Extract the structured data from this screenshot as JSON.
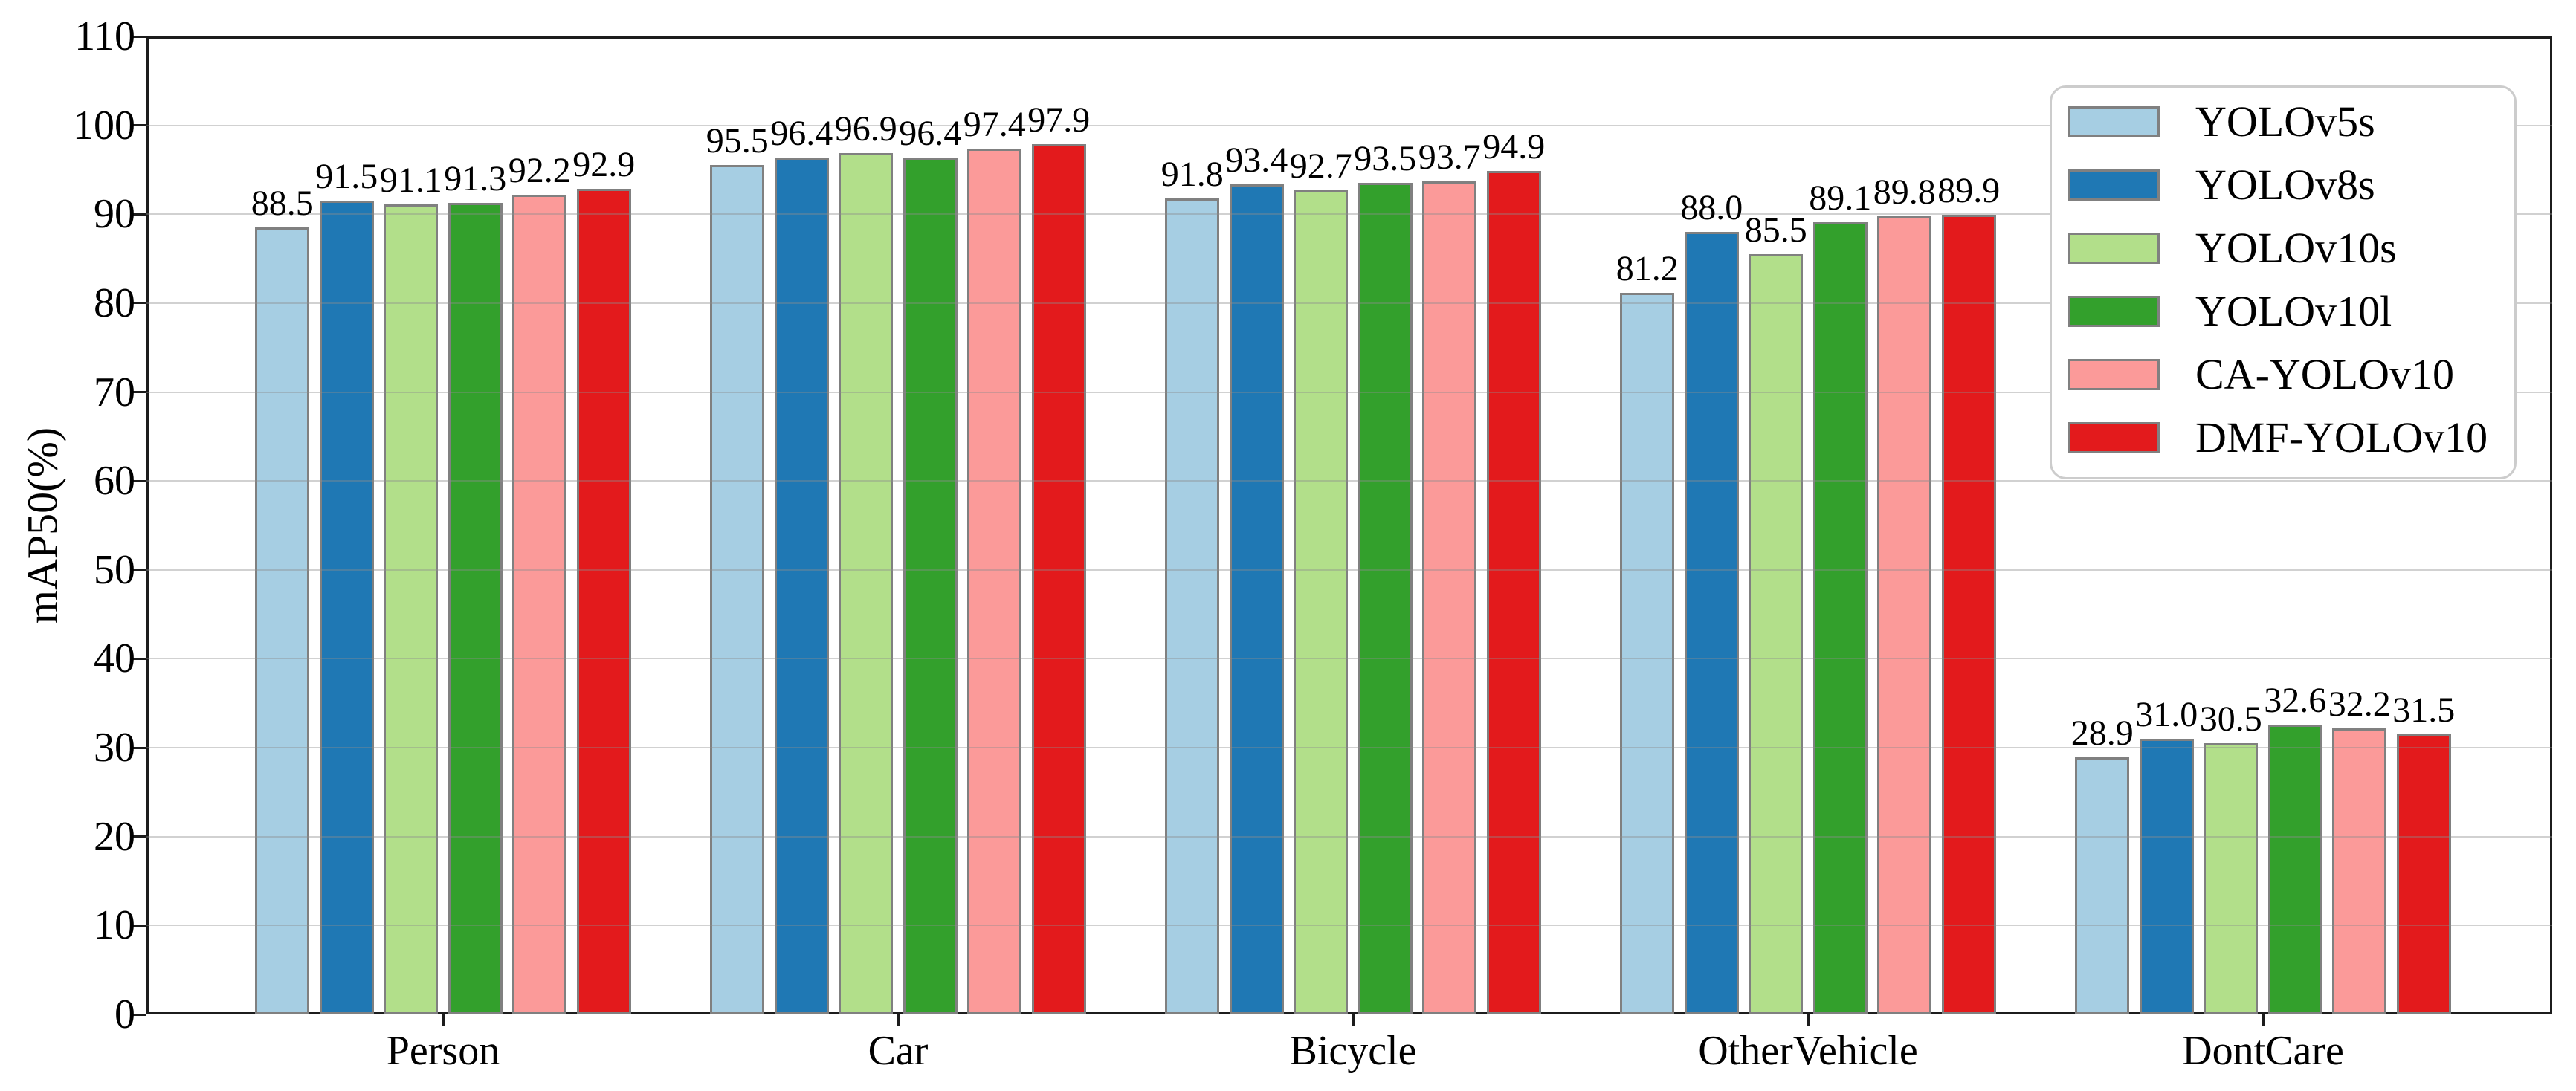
{
  "chart_data": {
    "type": "bar",
    "title": "",
    "xlabel": "",
    "ylabel": "mAP50(%)",
    "categories": [
      "Person",
      "Car",
      "Bicycle",
      "OtherVehicle",
      "DontCare"
    ],
    "series": [
      {
        "name": "YOLOv5s",
        "color": "#a6cee3",
        "values": [
          88.5,
          95.5,
          91.8,
          81.2,
          28.9
        ]
      },
      {
        "name": "YOLOv8s",
        "color": "#1f78b4",
        "values": [
          91.5,
          96.4,
          93.4,
          88.0,
          31.0
        ]
      },
      {
        "name": "YOLOv10s",
        "color": "#b2df8a",
        "values": [
          91.1,
          96.9,
          92.7,
          85.5,
          30.5
        ]
      },
      {
        "name": "YOLOv10l",
        "color": "#33a02c",
        "values": [
          91.3,
          96.4,
          93.5,
          89.1,
          32.6
        ]
      },
      {
        "name": "CA-YOLOv10",
        "color": "#fb9a99",
        "values": [
          92.2,
          97.4,
          93.7,
          89.8,
          32.2
        ]
      },
      {
        "name": "DMF-YOLOv10",
        "color": "#e31a1c",
        "values": [
          92.9,
          97.9,
          94.9,
          89.9,
          31.5
        ]
      }
    ],
    "ylim": [
      0,
      110
    ],
    "yticks": [
      0,
      10,
      20,
      30,
      40,
      50,
      60,
      70,
      80,
      90,
      100,
      110
    ],
    "grid": true,
    "grid_on_top_of_bars": true,
    "legend_position": "upper-right",
    "bar_edge_color": "#808080",
    "value_labels": true,
    "value_label_decimals": 1,
    "background_color": "#ffffff"
  }
}
